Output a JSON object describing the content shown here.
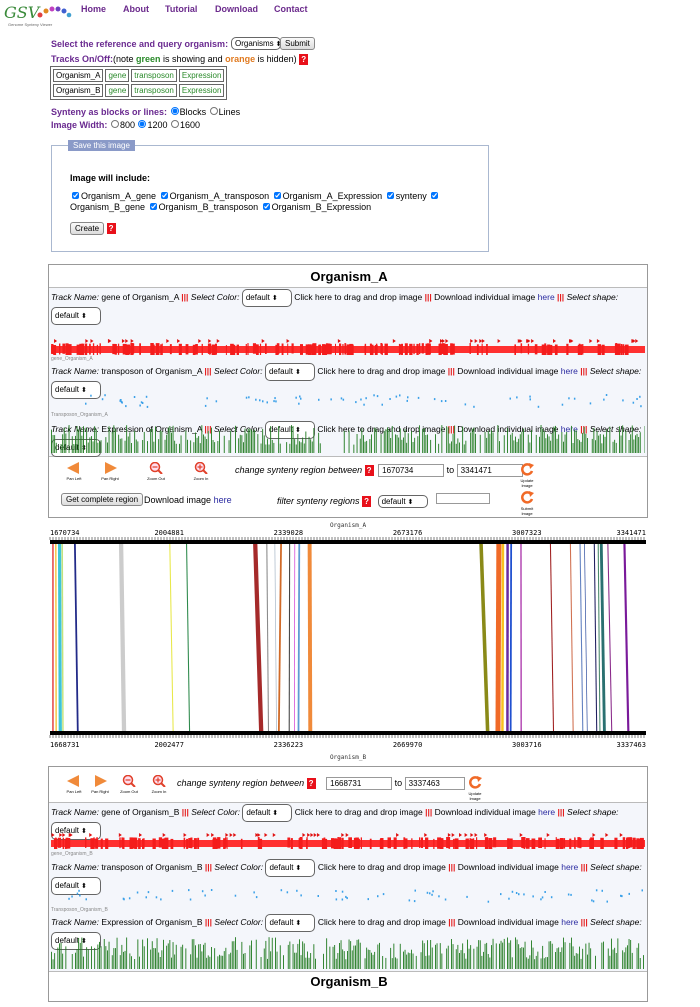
{
  "logo": {
    "text": "GSV",
    "subtitle": "Genome Synteny Viewer"
  },
  "nav": [
    "Home",
    "About",
    "Tutorial",
    "Download",
    "Contact"
  ],
  "controls": {
    "select_ref_label": "Select the reference and query organism:",
    "organism_select": "Organisms",
    "submit": "Submit",
    "tracks_label": "Tracks On/Off:",
    "tracks_note_pre": "(note ",
    "tracks_note_green": "green",
    "tracks_note_mid": " is showing and ",
    "tracks_note_orange": "orange",
    "tracks_note_post": " is hidden)",
    "track_rows": [
      [
        "Organism_A",
        "gene",
        "transposon",
        "Expression"
      ],
      [
        "Organism_B",
        "gene",
        "transposon",
        "Expression"
      ]
    ],
    "synteny_label": "Synteny as blocks or lines:",
    "blocks": "Blocks",
    "lines": "Lines",
    "width_label": "Image Width:",
    "widths": [
      "800",
      "1200",
      "1600"
    ]
  },
  "save": {
    "legend": "Save this image",
    "include_label": "Image will include:",
    "items_line1": [
      "Organism_A_gene",
      "Organism_A_transposon",
      "Organism_A_Expression",
      "synteny"
    ],
    "items_line2": [
      "Organism_B_gene",
      "Organism_B_transposon",
      "Organism_B_Expression"
    ],
    "create": "Create"
  },
  "panelA": {
    "title": "Organism_A",
    "tracks": [
      {
        "name": "gene of Organism_A",
        "tag": "gene_Organism_A"
      },
      {
        "name": "transposon of Organism_A",
        "tag": "Transposon_Organism_A"
      },
      {
        "name": "Expression of Organism_A",
        "tag": ""
      }
    ],
    "labels": {
      "track_name": "Track Name:",
      "select_color": "Select Color:",
      "default": "default",
      "drag": "Click here to drag and drop image",
      "download_ind": "Download individual image",
      "here": "here",
      "select_shape": "Select shape:"
    },
    "nav_icons": [
      "Pan Left",
      "Pan Right",
      "Zoom Out",
      "Zoom In"
    ],
    "change_region": "change synteny region between",
    "region_start": "1670734",
    "region_end": "3341471",
    "to": "to",
    "update": "Update Image",
    "get_complete": "Get complete region",
    "download_image": "Download image",
    "filter": "filter synteny regions",
    "filter_default": "default",
    "submit_image": "Submit Image"
  },
  "synteny": {
    "top_title": "Organism_A",
    "bottom_title": "Organism_B",
    "top_ticks": [
      "1670734",
      "2004881",
      "2339028",
      "2673176",
      "3007323",
      "3341471"
    ],
    "bottom_ticks": [
      "1668731",
      "2002477",
      "2336223",
      "2669970",
      "3003716",
      "3337463"
    ]
  },
  "chart_data": {
    "type": "synteny",
    "reference": "Organism_A",
    "query": "Organism_B",
    "ref_range": [
      1670734,
      3341471
    ],
    "query_range": [
      1668731,
      3337463
    ],
    "blocks": [
      {
        "a": [
          1677000,
          1681000
        ],
        "b": [
          1675000,
          1679000
        ],
        "color": "#e33a3a"
      },
      {
        "a": [
          1685000,
          1689000
        ],
        "b": [
          1684000,
          1688000
        ],
        "color": "#f3c53f"
      },
      {
        "a": [
          1693000,
          1702000
        ],
        "b": [
          1693000,
          1702000
        ],
        "color": "#3ec5d8"
      },
      {
        "a": [
          1703000,
          1707000
        ],
        "b": [
          1703000,
          1707000
        ],
        "color": "#c2e27a"
      },
      {
        "a": [
          1738000,
          1743000
        ],
        "b": [
          1744000,
          1749000
        ],
        "color": "#222a88"
      },
      {
        "a": [
          1864000,
          1876000
        ],
        "b": [
          1870000,
          1882000
        ],
        "color": "#cccccc"
      },
      {
        "a": [
          2005000,
          2008000
        ],
        "b": [
          2012000,
          2015000
        ],
        "color": "#e8e84a"
      },
      {
        "a": [
          2052000,
          2055000
        ],
        "b": [
          2058000,
          2061000
        ],
        "color": "#2e8a4c"
      },
      {
        "a": [
          2240000,
          2252000
        ],
        "b": [
          2254000,
          2266000
        ],
        "color": "#a52a2a"
      },
      {
        "a": [
          2277000,
          2280000
        ],
        "b": [
          2279000,
          2282000
        ],
        "color": "#8a8a8a"
      },
      {
        "a": [
          2300000,
          2302000
        ],
        "b": [
          2302000,
          2304000
        ],
        "color": "#a9b8c8"
      },
      {
        "a": [
          2316000,
          2321000
        ],
        "b": [
          2307000,
          2312000
        ],
        "color": "#d06a28"
      },
      {
        "a": [
          2341000,
          2344000
        ],
        "b": [
          2337000,
          2340000
        ],
        "color": "#444444"
      },
      {
        "a": [
          2356000,
          2358000
        ],
        "b": [
          2352000,
          2354000
        ],
        "color": "#d23ad2"
      },
      {
        "a": [
          2367000,
          2372000
        ],
        "b": [
          2362000,
          2367000
        ],
        "color": "#5f9bd4"
      },
      {
        "a": [
          2393000,
          2404000
        ],
        "b": [
          2392000,
          2403000
        ],
        "color": "#f08a3a"
      },
      {
        "a": [
          2874000,
          2884000
        ],
        "b": [
          2889000,
          2899000
        ],
        "color": "#8a8a18"
      },
      {
        "a": [
          2922000,
          2936000
        ],
        "b": [
          2916000,
          2930000
        ],
        "color": "#f06a28"
      },
      {
        "a": [
          2937000,
          2944000
        ],
        "b": [
          2932000,
          2939000
        ],
        "color": "#f8c020"
      },
      {
        "a": [
          2950000,
          2957000
        ],
        "b": [
          2946000,
          2953000
        ],
        "color": "#6a2aa0"
      },
      {
        "a": [
          2961000,
          2966000
        ],
        "b": [
          2956000,
          2961000
        ],
        "color": "#2050d0"
      },
      {
        "a": [
          2989000,
          2993000
        ],
        "b": [
          2986000,
          2990000
        ],
        "color": "#b040b0"
      },
      {
        "a": [
          3072000,
          3075000
        ],
        "b": [
          3077000,
          3080000
        ],
        "color": "#a02020"
      },
      {
        "a": [
          3128000,
          3131000
        ],
        "b": [
          3132000,
          3135000
        ],
        "color": "#d07050"
      },
      {
        "a": [
          3155000,
          3158000
        ],
        "b": [
          3159000,
          3162000
        ],
        "color": "#6080c0"
      },
      {
        "a": [
          3168000,
          3170000
        ],
        "b": [
          3172000,
          3174000
        ],
        "color": "#3050a0"
      },
      {
        "a": [
          3195000,
          3198000
        ],
        "b": [
          3198000,
          3201000
        ],
        "color": "#202060"
      },
      {
        "a": [
          3206000,
          3209000
        ],
        "b": [
          3207000,
          3210000
        ],
        "color": "#4a8a6a"
      },
      {
        "a": [
          3212000,
          3220000
        ],
        "b": [
          3217000,
          3225000
        ],
        "color": "#2a7070"
      },
      {
        "a": [
          3233000,
          3236000
        ],
        "b": [
          3240000,
          3243000
        ],
        "color": "#8a2a8a"
      },
      {
        "a": [
          3278000,
          3284000
        ],
        "b": [
          3285000,
          3291000
        ],
        "color": "#7a1a9a"
      }
    ]
  },
  "panelB": {
    "title": "Organism_B",
    "nav_icons": [
      "Pan Left",
      "Pan Right",
      "Zoom Out",
      "Zoom In"
    ],
    "change_region": "change synteny region between",
    "region_start": "1668731",
    "region_end": "3337463",
    "to": "to",
    "update": "Update Image",
    "tracks": [
      {
        "name": "gene of Organism_B",
        "tag": "gene_Organism_B"
      },
      {
        "name": "transposon of Organism_B",
        "tag": "Transposon_Organism_B"
      },
      {
        "name": "Expression of Organism_B",
        "tag": ""
      }
    ]
  }
}
